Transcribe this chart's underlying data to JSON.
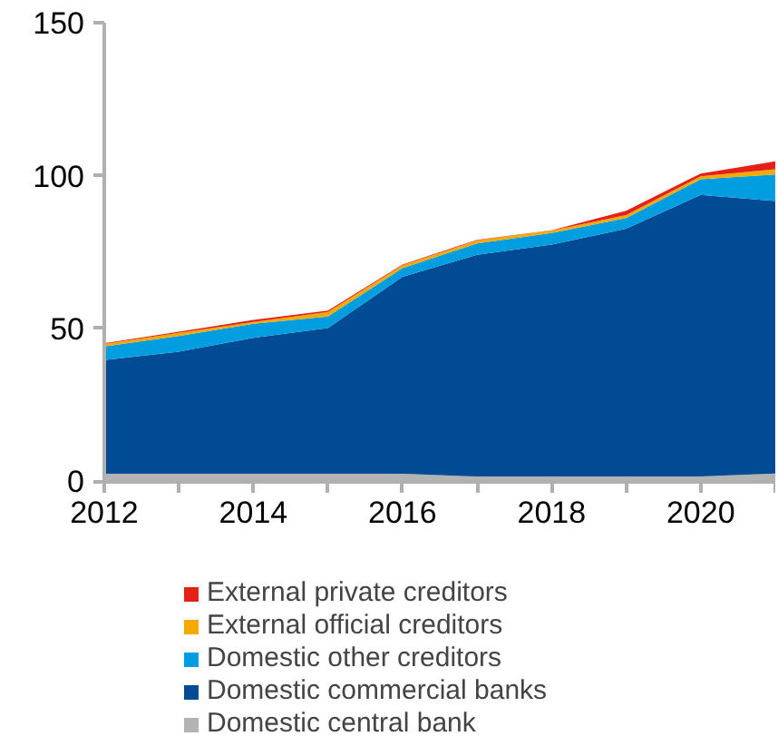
{
  "chart_data": {
    "type": "area",
    "stacked": true,
    "x": [
      2012,
      2013,
      2014,
      2015,
      2016,
      2017,
      2018,
      2019,
      2020,
      2021
    ],
    "series": [
      {
        "name": "Domestic central bank",
        "color": "#b3b3b3",
        "values": [
          2.4,
          2.4,
          2.4,
          2.4,
          2.4,
          1.5,
          1.5,
          1.5,
          1.5,
          2.5
        ]
      },
      {
        "name": "Domestic commercial banks",
        "color": "#004b93",
        "values": [
          37.2,
          40,
          44.5,
          47.7,
          64.5,
          72.6,
          75.9,
          81.1,
          92.2,
          89.2
        ]
      },
      {
        "name": "Domestic other creditors",
        "color": "#009ee0",
        "values": [
          4.5,
          5.1,
          4.6,
          3.8,
          2.8,
          3.7,
          3.8,
          3.5,
          5.1,
          8.7
        ]
      },
      {
        "name": "External official creditors",
        "color": "#f2a900",
        "values": [
          0.8,
          1,
          0.6,
          1.5,
          1,
          1,
          0.8,
          1,
          1,
          1.7
        ]
      },
      {
        "name": "External private creditors",
        "color": "#e32119",
        "values": [
          0.2,
          0.4,
          0.7,
          0.4,
          0.2,
          0.2,
          0.1,
          1.4,
          0.9,
          2.6
        ]
      }
    ],
    "xlim": [
      2012,
      2021
    ],
    "ylim": [
      0,
      150
    ],
    "xticks": [
      2012,
      {
        "value": 2013,
        "label": null
      },
      2014,
      {
        "value": 2015,
        "label": null
      },
      2016,
      {
        "value": 2017,
        "label": null
      },
      2018,
      {
        "value": 2019,
        "label": null
      },
      2020,
      {
        "value": 2021,
        "label": null
      }
    ],
    "yticks": [
      0,
      50,
      100,
      150
    ],
    "grid": false,
    "legend": "bottom"
  }
}
